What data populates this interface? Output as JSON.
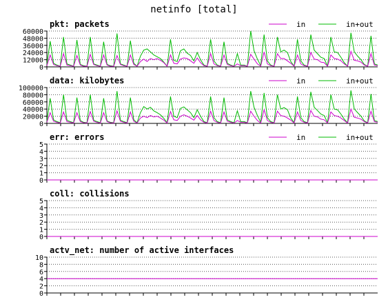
{
  "title": "netinfo [total]",
  "colors": {
    "in": "#cc00cc",
    "inout": "#00bb00",
    "axis": "#000000",
    "grid": "#555555"
  },
  "chart_data": [
    {
      "type": "line",
      "name": "pkt",
      "title": "pkt: packets",
      "ylim": [
        0,
        60000
      ],
      "yticks": [
        0,
        12000,
        24000,
        36000,
        48000,
        60000
      ],
      "ytick_labels": [
        "0",
        "12000",
        "24000",
        "36000",
        "48000",
        "60000"
      ],
      "legend": [
        "in",
        "in+out"
      ],
      "legend_position": "top-right",
      "grid": true,
      "series": [
        {
          "key": "in",
          "name": "in",
          "values": [
            2000,
            20000,
            4000,
            2000,
            1000,
            22000,
            3000,
            2000,
            1000,
            19000,
            3000,
            1000,
            1000,
            21000,
            4000,
            2000,
            1000,
            20000,
            3000,
            1000,
            1000,
            19000,
            4000,
            2000,
            1000,
            20000,
            4000,
            1000,
            9000,
            13000,
            9000,
            14000,
            12000,
            14000,
            11000,
            7000,
            1000,
            20000,
            6000,
            5000,
            13000,
            15000,
            14000,
            10000,
            6000,
            15000,
            7000,
            2000,
            1000,
            22000,
            5000,
            2000,
            1000,
            20000,
            4000,
            2000,
            1000,
            5000,
            2000,
            2000,
            1000,
            21000,
            13000,
            5000,
            1000,
            25000,
            5000,
            2000,
            1000,
            22000,
            14000,
            14000,
            10000,
            6000,
            1000,
            20000,
            5000,
            2000,
            1000,
            24000,
            13000,
            12000,
            8000,
            7000,
            1000,
            20000,
            14000,
            13000,
            10000,
            5000,
            1000,
            26000,
            11000,
            10000,
            8000,
            3000,
            1000,
            22000,
            3000,
            2000
          ]
        },
        {
          "key": "inout",
          "name": "in+out",
          "values": [
            4000,
            43000,
            6000,
            3000,
            1000,
            50000,
            5000,
            3000,
            1000,
            45000,
            4000,
            2000,
            1000,
            50000,
            5000,
            3000,
            1000,
            42000,
            4000,
            2000,
            1000,
            56000,
            5000,
            3000,
            1000,
            44000,
            6000,
            1000,
            18000,
            28000,
            30000,
            25000,
            20000,
            17000,
            14000,
            8000,
            1000,
            46000,
            11000,
            9000,
            27000,
            30000,
            23000,
            19000,
            10000,
            24000,
            12000,
            3000,
            1000,
            46000,
            10000,
            3000,
            1000,
            42000,
            6000,
            3000,
            1000,
            22000,
            3000,
            3000,
            1000,
            60000,
            27000,
            13000,
            2000,
            54000,
            10000,
            3000,
            1000,
            50000,
            25000,
            28000,
            24000,
            9000,
            1000,
            46000,
            10000,
            3000,
            1000,
            54000,
            28000,
            22000,
            16000,
            14000,
            1000,
            50000,
            25000,
            24000,
            16000,
            7000,
            1000,
            57000,
            25000,
            18000,
            12000,
            4000,
            1000,
            52000,
            5000,
            3000
          ]
        }
      ]
    },
    {
      "type": "line",
      "name": "data",
      "title": "data: kilobytes",
      "ylim": [
        0,
        100000
      ],
      "yticks": [
        0,
        20000,
        40000,
        60000,
        80000,
        100000
      ],
      "ytick_labels": [
        "0",
        "20000",
        "40000",
        "60000",
        "80000",
        "100000"
      ],
      "legend": [
        "in",
        "in+out"
      ],
      "legend_position": "top-right",
      "grid": true,
      "series": [
        {
          "key": "in",
          "name": "in",
          "values": [
            3000,
            30000,
            6000,
            3000,
            1000,
            32000,
            5000,
            3000,
            1000,
            30000,
            5000,
            2000,
            1000,
            33000,
            6000,
            3000,
            1000,
            30000,
            5000,
            2000,
            1000,
            35000,
            6000,
            3000,
            1000,
            32000,
            6000,
            1000,
            15000,
            20000,
            16000,
            22000,
            18000,
            20000,
            15000,
            9000,
            1000,
            33000,
            10000,
            8000,
            20000,
            24000,
            20000,
            15000,
            9000,
            22000,
            10000,
            3000,
            1000,
            34000,
            8000,
            3000,
            1000,
            32000,
            6000,
            3000,
            1000,
            8000,
            3000,
            3000,
            1000,
            34000,
            20000,
            8000,
            1000,
            38000,
            8000,
            3000,
            1000,
            34000,
            22000,
            20000,
            15000,
            9000,
            1000,
            32000,
            8000,
            3000,
            1000,
            36000,
            20000,
            18000,
            12000,
            10000,
            1000,
            32000,
            22000,
            20000,
            15000,
            8000,
            1000,
            40000,
            17000,
            15000,
            12000,
            5000,
            1000,
            34000,
            5000,
            3000
          ]
        },
        {
          "key": "inout",
          "name": "in+out",
          "values": [
            6000,
            70000,
            10000,
            5000,
            2000,
            80000,
            9000,
            5000,
            2000,
            72000,
            8000,
            3000,
            2000,
            80000,
            9000,
            5000,
            2000,
            70000,
            7000,
            3000,
            2000,
            90000,
            9000,
            5000,
            2000,
            72000,
            10000,
            2000,
            30000,
            47000,
            40000,
            45000,
            35000,
            30000,
            24000,
            14000,
            2000,
            75000,
            20000,
            16000,
            42000,
            46000,
            38000,
            30000,
            16000,
            38000,
            20000,
            5000,
            2000,
            75000,
            16000,
            5000,
            2000,
            72000,
            10000,
            5000,
            2000,
            35000,
            5000,
            5000,
            2000,
            90000,
            45000,
            22000,
            3000,
            85000,
            16000,
            5000,
            2000,
            80000,
            40000,
            44000,
            38000,
            15000,
            2000,
            75000,
            16000,
            5000,
            2000,
            88000,
            45000,
            36000,
            26000,
            22000,
            2000,
            80000,
            40000,
            38000,
            26000,
            12000,
            2000,
            92000,
            40000,
            30000,
            20000,
            7000,
            2000,
            82000,
            8000,
            5000
          ]
        }
      ]
    },
    {
      "type": "line",
      "name": "err",
      "title": "err: errors",
      "ylim": [
        0,
        5
      ],
      "yticks": [
        0,
        1,
        2,
        3,
        4,
        5
      ],
      "ytick_labels": [
        "0",
        "1",
        "2",
        "3",
        "4",
        "5"
      ],
      "legend": [
        "in",
        "in+out"
      ],
      "legend_position": "top-right",
      "grid": true,
      "series": [
        {
          "key": "in",
          "name": "in",
          "values": [
            0,
            0
          ]
        },
        {
          "key": "inout",
          "name": "in+out",
          "values": [
            0,
            0
          ]
        }
      ]
    },
    {
      "type": "line",
      "name": "coll",
      "title": "coll: collisions",
      "ylim": [
        0,
        5
      ],
      "yticks": [
        0,
        1,
        2,
        3,
        4,
        5
      ],
      "ytick_labels": [
        "0",
        "1",
        "2",
        "3",
        "4",
        "5"
      ],
      "legend": [],
      "grid": true,
      "series": [
        {
          "key": "in",
          "values": [
            0,
            0
          ]
        }
      ]
    },
    {
      "type": "line",
      "name": "actv_net",
      "title": "actv_net: number of active interfaces",
      "ylim": [
        0,
        10
      ],
      "yticks": [
        0,
        2,
        4,
        6,
        8,
        10
      ],
      "ytick_labels": [
        "0",
        "2",
        "4",
        "6",
        "8",
        "10"
      ],
      "legend": [],
      "grid": true,
      "series": [
        {
          "key": "in",
          "values": [
            4,
            4
          ]
        }
      ]
    }
  ]
}
